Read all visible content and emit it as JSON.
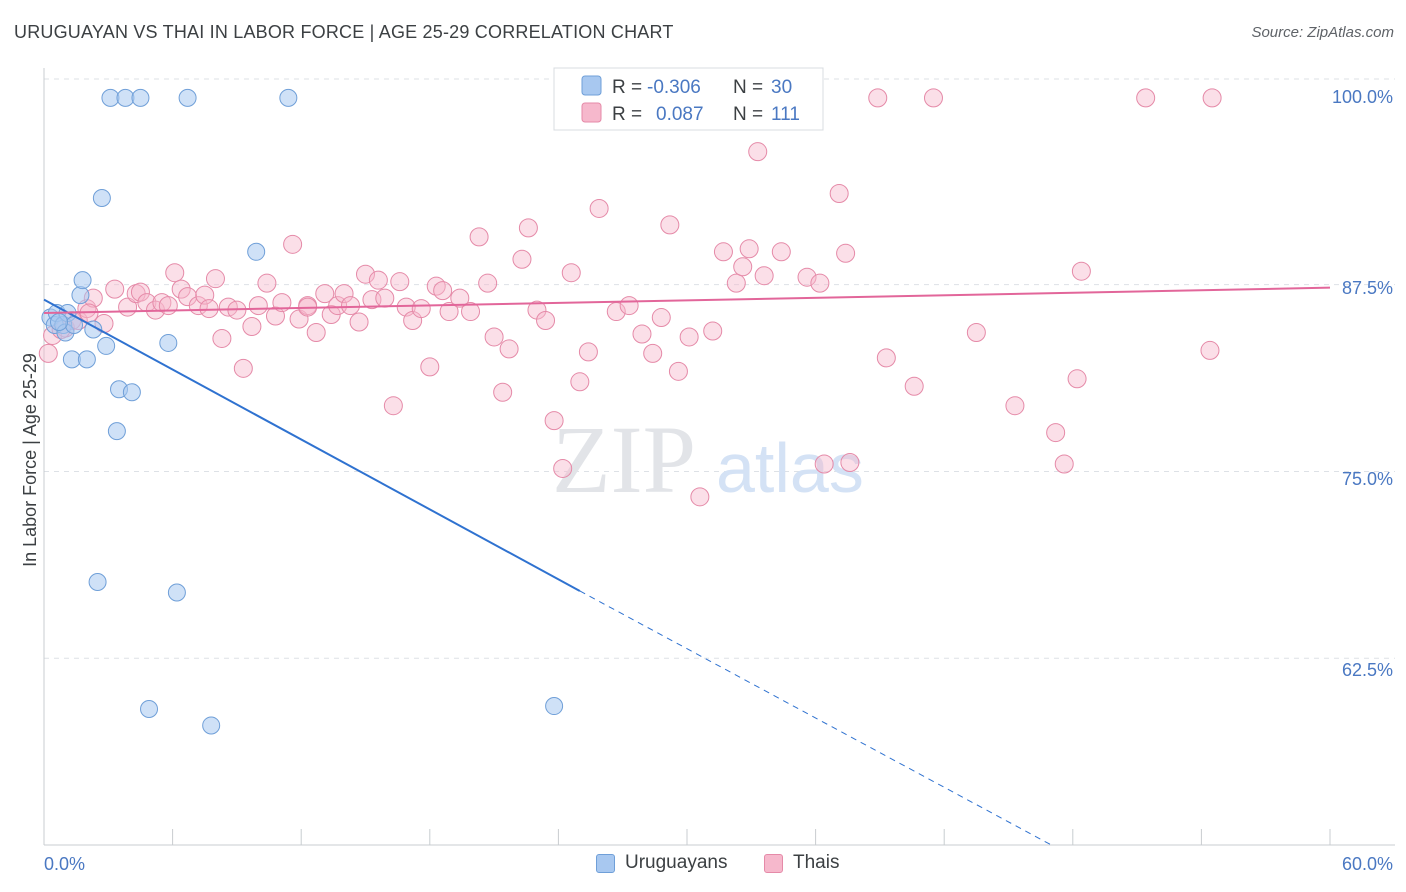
{
  "title": "URUGUAYAN VS THAI IN LABOR FORCE | AGE 25-29 CORRELATION CHART",
  "source": "Source: ZipAtlas.com",
  "watermark": {
    "zip": "ZIP",
    "atlas": "atlas"
  },
  "colors": {
    "uruguayans_fill": "#a8c8f0",
    "uruguayans_stroke": "#6f9fd8",
    "uruguayans_line": "#2f72d0",
    "thais_fill": "#f6b8cc",
    "thais_stroke": "#e58aa8",
    "thais_line": "#e2669a",
    "axis_value": "#4a78c2",
    "grid": "#dde1e6"
  },
  "stats_legend": {
    "uruguayans": {
      "r_label": "R =",
      "r_value": "-0.306",
      "n_label": "N =",
      "n_value": "30"
    },
    "thais": {
      "r_label": "R =",
      "r_value": "0.087",
      "n_label": "N =",
      "n_value": "111"
    }
  },
  "bottom_legend": {
    "uruguayans": "Uruguayans",
    "thais": "Thais"
  },
  "chart_data": {
    "type": "scatter",
    "title": "URUGUAYAN VS THAI IN LABOR FORCE | AGE 25-29 CORRELATION CHART",
    "xlabel": "",
    "ylabel": "In Labor Force | Age 25-29",
    "xlim": [
      0,
      60
    ],
    "ylim": [
      50,
      102
    ],
    "x_tick_labels": [
      "0.0%",
      "60.0%"
    ],
    "y_ticks": [
      62.5,
      75.0,
      87.5,
      100.0
    ],
    "y_tick_labels": [
      "62.5%",
      "75.0%",
      "87.5%",
      "100.0%"
    ],
    "grid": "horizontal dashed",
    "legend_placement": "top-center and bottom",
    "series": [
      {
        "name": "Uruguayans",
        "r": -0.306,
        "n": 30,
        "trend": {
          "x": [
            0,
            25,
            47
          ],
          "y": [
            86.5,
            67.0,
            50.0
          ],
          "solid_until_x": 25
        },
        "points": [
          [
            0.3,
            85.3
          ],
          [
            0.5,
            84.8
          ],
          [
            0.6,
            85.6
          ],
          [
            0.9,
            84.8
          ],
          [
            1.0,
            84.3
          ],
          [
            1.1,
            85.6
          ],
          [
            1.3,
            82.5
          ],
          [
            1.4,
            84.8
          ],
          [
            1.7,
            86.8
          ],
          [
            1.8,
            87.8
          ],
          [
            2.0,
            82.5
          ],
          [
            2.3,
            84.5
          ],
          [
            2.5,
            67.6
          ],
          [
            2.7,
            93.3
          ],
          [
            2.9,
            83.4
          ],
          [
            3.1,
            100.0
          ],
          [
            3.4,
            77.7
          ],
          [
            3.5,
            80.5
          ],
          [
            3.8,
            100.0
          ],
          [
            4.1,
            80.3
          ],
          [
            4.5,
            100.0
          ],
          [
            4.9,
            59.1
          ],
          [
            5.8,
            83.6
          ],
          [
            6.2,
            66.9
          ],
          [
            6.7,
            100.0
          ],
          [
            7.8,
            58.0
          ],
          [
            9.9,
            89.7
          ],
          [
            11.4,
            100.0
          ],
          [
            23.8,
            59.3
          ],
          [
            0.7,
            85.0
          ]
        ]
      },
      {
        "name": "Thais",
        "r": 0.087,
        "n": 111,
        "trend": {
          "x": [
            0,
            60
          ],
          "y": [
            85.6,
            87.3
          ]
        },
        "points": [
          [
            0.2,
            82.9
          ],
          [
            0.4,
            84.1
          ],
          [
            1.0,
            84.6
          ],
          [
            1.3,
            85.1
          ],
          [
            1.6,
            85.1
          ],
          [
            2.0,
            85.9
          ],
          [
            2.3,
            86.6
          ],
          [
            2.8,
            84.9
          ],
          [
            3.3,
            87.2
          ],
          [
            3.9,
            86.0
          ],
          [
            4.3,
            86.9
          ],
          [
            4.5,
            87.0
          ],
          [
            4.8,
            86.3
          ],
          [
            5.2,
            85.8
          ],
          [
            5.5,
            86.3
          ],
          [
            5.8,
            86.1
          ],
          [
            6.1,
            88.3
          ],
          [
            6.4,
            87.2
          ],
          [
            6.7,
            86.7
          ],
          [
            7.2,
            86.1
          ],
          [
            7.5,
            86.8
          ],
          [
            7.7,
            85.9
          ],
          [
            8.0,
            87.9
          ],
          [
            8.3,
            83.9
          ],
          [
            8.6,
            86.0
          ],
          [
            9.0,
            85.8
          ],
          [
            9.3,
            81.9
          ],
          [
            9.7,
            84.7
          ],
          [
            10.0,
            86.1
          ],
          [
            10.4,
            87.6
          ],
          [
            10.8,
            85.4
          ],
          [
            11.1,
            86.3
          ],
          [
            11.6,
            90.2
          ],
          [
            11.9,
            85.2
          ],
          [
            12.3,
            86.1
          ],
          [
            12.7,
            84.3
          ],
          [
            13.1,
            86.9
          ],
          [
            13.4,
            85.5
          ],
          [
            13.7,
            86.1
          ],
          [
            14.0,
            86.9
          ],
          [
            14.3,
            86.1
          ],
          [
            14.7,
            85.0
          ],
          [
            15.0,
            88.2
          ],
          [
            15.3,
            86.5
          ],
          [
            15.6,
            87.8
          ],
          [
            15.9,
            86.6
          ],
          [
            16.3,
            79.4
          ],
          [
            16.6,
            87.7
          ],
          [
            16.9,
            86.0
          ],
          [
            17.2,
            85.1
          ],
          [
            17.6,
            85.9
          ],
          [
            18.0,
            82.0
          ],
          [
            18.3,
            87.4
          ],
          [
            18.6,
            87.1
          ],
          [
            18.9,
            85.7
          ],
          [
            19.4,
            86.6
          ],
          [
            19.9,
            85.7
          ],
          [
            20.3,
            90.7
          ],
          [
            20.7,
            87.6
          ],
          [
            21.0,
            84.0
          ],
          [
            21.4,
            80.3
          ],
          [
            21.7,
            83.2
          ],
          [
            22.3,
            89.2
          ],
          [
            22.6,
            91.3
          ],
          [
            23.0,
            85.8
          ],
          [
            23.4,
            85.1
          ],
          [
            23.8,
            78.4
          ],
          [
            24.2,
            75.2
          ],
          [
            24.6,
            88.3
          ],
          [
            25.0,
            81.0
          ],
          [
            25.4,
            83.0
          ],
          [
            25.9,
            92.6
          ],
          [
            26.7,
            85.7
          ],
          [
            27.3,
            86.1
          ],
          [
            27.9,
            84.2
          ],
          [
            28.4,
            82.9
          ],
          [
            28.8,
            85.3
          ],
          [
            29.2,
            91.5
          ],
          [
            29.6,
            81.7
          ],
          [
            30.1,
            84.0
          ],
          [
            30.6,
            73.3
          ],
          [
            31.2,
            84.4
          ],
          [
            31.7,
            89.7
          ],
          [
            32.3,
            87.6
          ],
          [
            32.6,
            88.7
          ],
          [
            32.9,
            89.9
          ],
          [
            33.3,
            96.4
          ],
          [
            33.6,
            88.1
          ],
          [
            34.4,
            89.7
          ],
          [
            35.6,
            88.0
          ],
          [
            36.2,
            87.6
          ],
          [
            36.4,
            75.5
          ],
          [
            37.1,
            93.6
          ],
          [
            37.4,
            89.6
          ],
          [
            37.6,
            75.6
          ],
          [
            38.9,
            100.0
          ],
          [
            39.3,
            82.6
          ],
          [
            40.6,
            80.7
          ],
          [
            41.5,
            100.0
          ],
          [
            43.5,
            84.3
          ],
          [
            45.3,
            79.4
          ],
          [
            47.2,
            77.6
          ],
          [
            47.6,
            75.5
          ],
          [
            48.2,
            81.2
          ],
          [
            48.4,
            88.4
          ],
          [
            51.4,
            100.0
          ],
          [
            54.5,
            100.0
          ],
          [
            54.4,
            83.1
          ],
          [
            0.8,
            84.5
          ],
          [
            2.1,
            85.6
          ],
          [
            12.3,
            86.0
          ]
        ]
      }
    ]
  }
}
